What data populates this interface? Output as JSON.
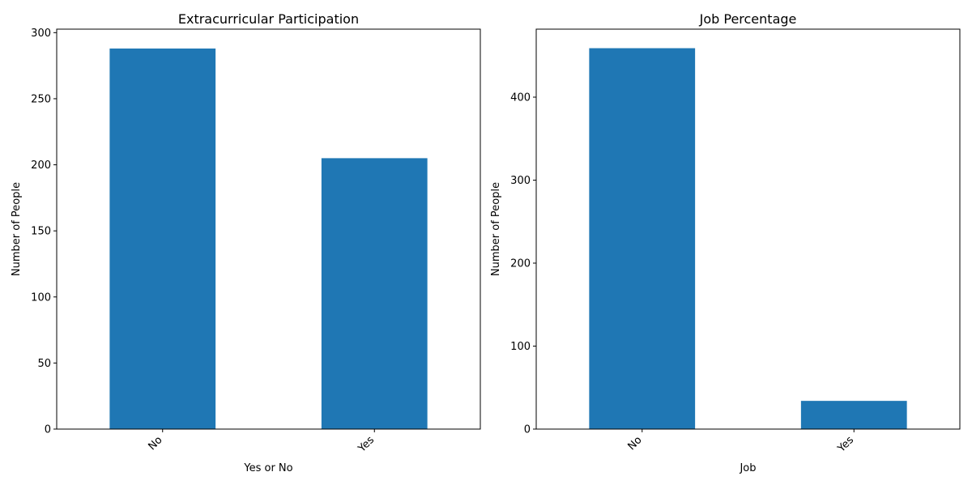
{
  "chart_data": [
    {
      "type": "bar",
      "title": "Extracurricular Participation",
      "xlabel": "Yes or No",
      "ylabel": "Number of People",
      "categories": [
        "No",
        "Yes"
      ],
      "values": [
        288,
        205
      ],
      "ylim": [
        0,
        302.65
      ],
      "yticks": [
        0,
        50,
        100,
        150,
        200,
        250,
        300
      ],
      "color": "#1f77b4",
      "grid": false
    },
    {
      "type": "bar",
      "title": "Job Percentage",
      "xlabel": "Job",
      "ylabel": "Number of People",
      "categories": [
        "No",
        "Yes"
      ],
      "values": [
        459,
        34
      ],
      "ylim": [
        0,
        481.95
      ],
      "yticks": [
        0,
        100,
        200,
        300,
        400
      ],
      "color": "#1f77b4",
      "grid": false
    }
  ]
}
